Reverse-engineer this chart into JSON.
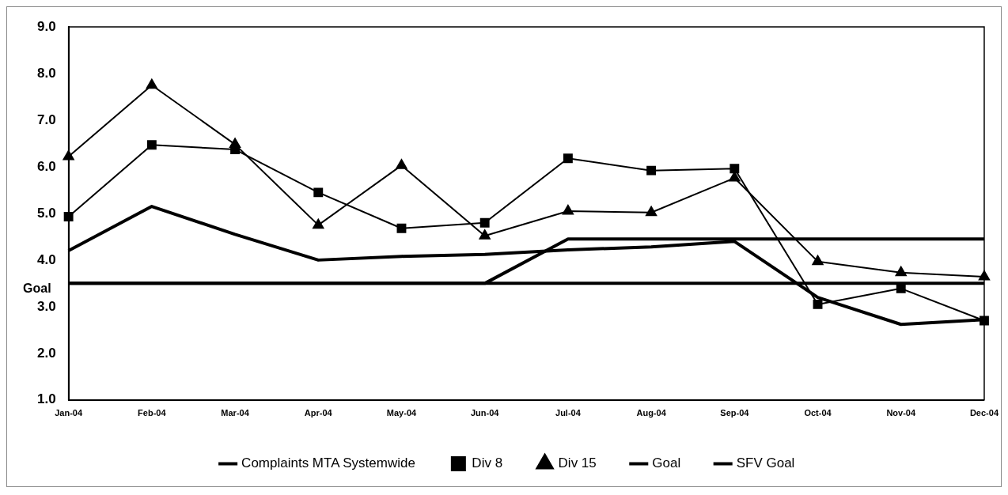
{
  "chart_data": {
    "type": "line",
    "categories": [
      "Jan-04",
      "Feb-04",
      "Mar-04",
      "Apr-04",
      "May-04",
      "Jun-04",
      "Jul-04",
      "Aug-04",
      "Sep-04",
      "Oct-04",
      "Nov-04",
      "Dec-04"
    ],
    "series": [
      {
        "name": "Complaints MTA Systemwide",
        "color": "#000000",
        "marker": "none",
        "values": [
          4.2,
          5.15,
          4.55,
          4.0,
          4.08,
          4.12,
          4.22,
          4.28,
          4.4,
          3.2,
          2.62,
          2.72
        ]
      },
      {
        "name": "Div 8",
        "color": "#000000",
        "marker": "square",
        "values": [
          4.93,
          6.47,
          6.37,
          5.45,
          4.68,
          4.8,
          6.18,
          5.92,
          5.96,
          3.05,
          3.39,
          2.7
        ]
      },
      {
        "name": "Div 15",
        "color": "#000000",
        "marker": "triangle",
        "values": [
          6.22,
          7.75,
          6.48,
          4.75,
          6.03,
          4.52,
          5.05,
          5.02,
          5.76,
          3.97,
          3.73,
          3.64
        ]
      },
      {
        "name": "Goal",
        "color": "#000000",
        "marker": "none",
        "values": [
          3.5,
          3.5,
          3.5,
          3.5,
          3.5,
          3.5,
          3.5,
          3.5,
          3.5,
          3.5,
          3.5,
          3.5
        ]
      },
      {
        "name": "SFV Goal",
        "color": "#000000",
        "marker": "none",
        "values": [
          3.5,
          3.5,
          3.5,
          3.5,
          3.5,
          3.5,
          4.45,
          4.45,
          4.45,
          4.45,
          4.45,
          4.45
        ]
      }
    ],
    "ylim": [
      1,
      9
    ],
    "yticks": [
      {
        "value": 1,
        "label": "1.0"
      },
      {
        "value": 2,
        "label": "2.0"
      },
      {
        "value": 3,
        "label": "3.0"
      },
      {
        "value": 4,
        "label": "4.0"
      },
      {
        "value": 5,
        "label": "5.0"
      },
      {
        "value": 6,
        "label": "6.0"
      },
      {
        "value": 7,
        "label": "7.0"
      },
      {
        "value": 8,
        "label": "8.0"
      },
      {
        "value": 9,
        "label": "9.0"
      }
    ],
    "annotations": [
      "Goal"
    ],
    "grid": false,
    "legend": "bottom",
    "line_style": "solid"
  }
}
